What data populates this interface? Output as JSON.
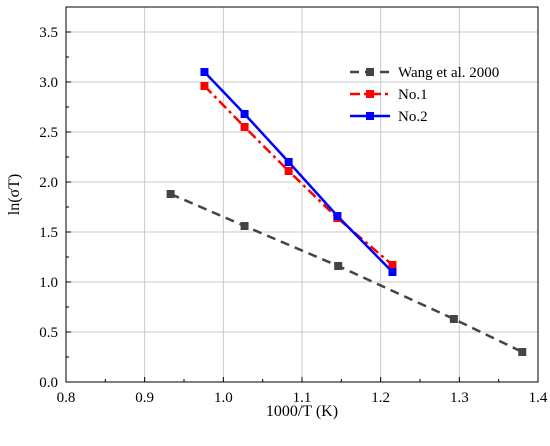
{
  "chart_data": {
    "type": "line",
    "title": "",
    "xlabel": "1000/T (K)",
    "ylabel": "ln(σT)",
    "xlim": [
      0.8,
      1.4
    ],
    "ylim": [
      0.0,
      3.75
    ],
    "xticks": [
      0.8,
      0.9,
      1.0,
      1.1,
      1.2,
      1.3,
      1.4
    ],
    "xtick_labels": [
      "0.8",
      "0.9",
      "1.0",
      "1.1",
      "1.2",
      "1.3",
      "1.4"
    ],
    "yticks": [
      0.0,
      0.5,
      1.0,
      1.5,
      2.0,
      2.5,
      3.0,
      3.5
    ],
    "ytick_labels": [
      "0.0",
      "0.5",
      "1.0",
      "1.5",
      "2.0",
      "2.5",
      "3.0",
      "3.5"
    ],
    "grid": true,
    "legend_position": "top-right",
    "series": [
      {
        "name": "Wang et al. 2000",
        "color": "#444444",
        "line_style": "dashed",
        "marker": "square",
        "x": [
          0.933,
          1.027,
          1.146,
          1.293,
          1.38
        ],
        "y": [
          1.88,
          1.56,
          1.16,
          0.63,
          0.3
        ]
      },
      {
        "name": "No.1",
        "color": "#ff0000",
        "line_style": "dash-dot",
        "marker": "square",
        "x": [
          0.976,
          1.027,
          1.083,
          1.145,
          1.215
        ],
        "y": [
          2.96,
          2.55,
          2.11,
          1.64,
          1.17
        ]
      },
      {
        "name": "No.2",
        "color": "#0000ff",
        "line_style": "solid",
        "marker": "square",
        "x": [
          0.976,
          1.027,
          1.083,
          1.145,
          1.215
        ],
        "y": [
          3.1,
          2.68,
          2.2,
          1.66,
          1.1
        ]
      }
    ]
  }
}
